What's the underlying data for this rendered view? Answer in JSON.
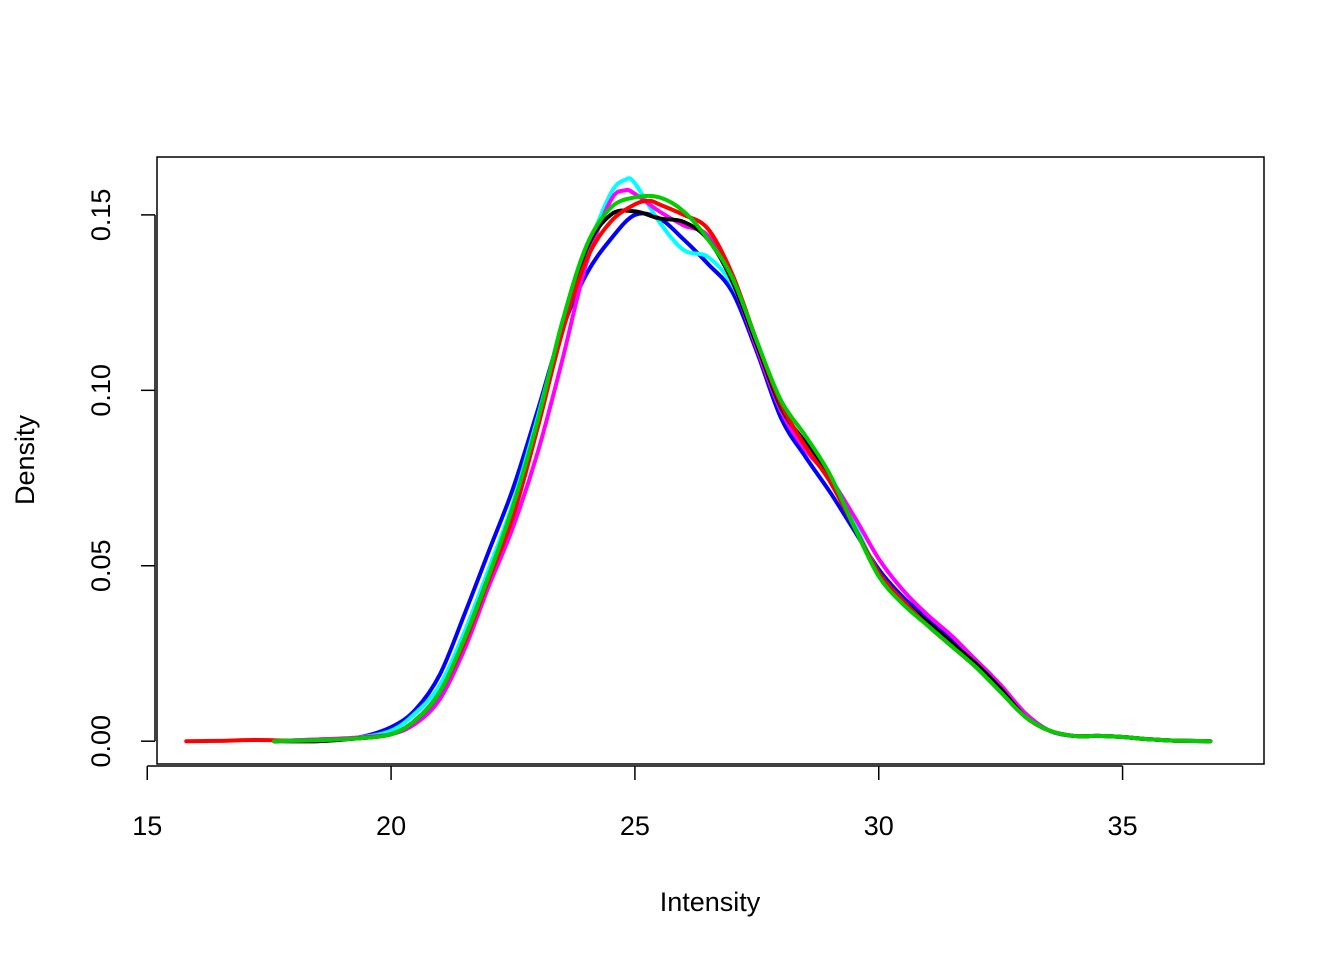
{
  "chart_data": {
    "type": "line",
    "title": "",
    "xlabel": "Intensity",
    "ylabel": "Density",
    "xlim": [
      15.2,
      37.9
    ],
    "ylim": [
      -0.0065,
      0.1665
    ],
    "x_ticks": [
      15,
      20,
      25,
      30,
      35
    ],
    "x_tick_labels": [
      "15",
      "20",
      "25",
      "30",
      "35"
    ],
    "y_ticks": [
      0,
      0.05,
      0.1,
      0.15
    ],
    "y_tick_labels": [
      "0.00",
      "0.05",
      "0.10",
      "0.15"
    ],
    "grid": false,
    "legend": "none",
    "series": [
      {
        "color": "#0000ff",
        "x": [
          17.6,
          18.5,
          19.3,
          20.0,
          20.5,
          21.0,
          21.5,
          22.0,
          22.5,
          23.0,
          23.5,
          24.0,
          24.5,
          25.0,
          25.5,
          26.0,
          26.5,
          27.0,
          27.5,
          28.0,
          28.5,
          29.0,
          29.5,
          30.0,
          30.5,
          31.0,
          31.5,
          32.0,
          32.5,
          33.0,
          33.5,
          34.0,
          34.5,
          35.0,
          35.5,
          36.0,
          36.8
        ],
        "y": [
          0.0,
          0.0005,
          0.001,
          0.004,
          0.009,
          0.019,
          0.036,
          0.054,
          0.072,
          0.094,
          0.117,
          0.133,
          0.143,
          0.15,
          0.149,
          0.143,
          0.136,
          0.128,
          0.111,
          0.092,
          0.081,
          0.071,
          0.06,
          0.049,
          0.041,
          0.035,
          0.029,
          0.023,
          0.016,
          0.008,
          0.003,
          0.0015,
          0.0015,
          0.0012,
          0.0006,
          0.0002,
          0.0
        ]
      },
      {
        "color": "#00ffff",
        "x": [
          17.6,
          18.5,
          19.3,
          20.0,
          20.5,
          21.0,
          21.5,
          22.0,
          22.5,
          23.0,
          23.5,
          24.0,
          24.5,
          24.8,
          25.0,
          25.5,
          26.0,
          26.5,
          27.0,
          27.5,
          28.0,
          28.5,
          29.0,
          29.5,
          30.0,
          30.5,
          31.0,
          31.5,
          32.0,
          32.5,
          33.0,
          33.5,
          34.0,
          34.5,
          35.0,
          35.5,
          36.0,
          36.8
        ],
        "y": [
          0.0,
          0.0005,
          0.001,
          0.003,
          0.008,
          0.016,
          0.031,
          0.049,
          0.068,
          0.092,
          0.118,
          0.139,
          0.156,
          0.16,
          0.159,
          0.148,
          0.14,
          0.138,
          0.13,
          0.114,
          0.095,
          0.085,
          0.075,
          0.062,
          0.048,
          0.04,
          0.034,
          0.028,
          0.022,
          0.015,
          0.007,
          0.003,
          0.0015,
          0.0015,
          0.0012,
          0.0006,
          0.0002,
          0.0
        ]
      },
      {
        "color": "#ff00ff",
        "x": [
          17.6,
          18.5,
          19.3,
          20.0,
          20.5,
          21.0,
          21.5,
          22.0,
          22.5,
          23.0,
          23.5,
          24.0,
          24.5,
          24.8,
          25.0,
          25.5,
          26.0,
          26.5,
          27.0,
          27.5,
          28.0,
          28.5,
          29.0,
          29.5,
          30.0,
          30.5,
          31.0,
          31.5,
          32.0,
          32.5,
          33.0,
          33.5,
          34.0,
          34.5,
          35.0,
          35.5,
          36.0,
          36.8
        ],
        "y": [
          0.0,
          0.0005,
          0.001,
          0.002,
          0.005,
          0.012,
          0.026,
          0.044,
          0.061,
          0.082,
          0.108,
          0.136,
          0.154,
          0.157,
          0.156,
          0.151,
          0.147,
          0.144,
          0.131,
          0.112,
          0.094,
          0.083,
          0.075,
          0.064,
          0.052,
          0.043,
          0.036,
          0.03,
          0.023,
          0.016,
          0.008,
          0.003,
          0.0015,
          0.0015,
          0.0012,
          0.0006,
          0.0002,
          0.0
        ]
      },
      {
        "color": "#000000",
        "x": [
          17.6,
          18.5,
          19.3,
          20.0,
          20.5,
          21.0,
          21.5,
          22.0,
          22.5,
          23.0,
          23.5,
          24.0,
          24.5,
          25.0,
          25.5,
          26.0,
          26.5,
          27.0,
          27.5,
          28.0,
          28.5,
          29.0,
          29.5,
          30.0,
          30.5,
          31.0,
          31.5,
          32.0,
          32.5,
          33.0,
          33.5,
          34.0,
          34.5,
          35.0,
          35.5,
          36.0,
          36.8
        ],
        "y": [
          0.0,
          0.0,
          0.0008,
          0.002,
          0.006,
          0.014,
          0.029,
          0.047,
          0.066,
          0.09,
          0.117,
          0.14,
          0.15,
          0.151,
          0.149,
          0.148,
          0.143,
          0.131,
          0.113,
          0.095,
          0.085,
          0.075,
          0.061,
          0.048,
          0.04,
          0.034,
          0.028,
          0.022,
          0.015,
          0.007,
          0.003,
          0.0015,
          0.0015,
          0.0012,
          0.0006,
          0.0002,
          0.0
        ]
      },
      {
        "color": "#ff0000",
        "x": [
          15.8,
          16.5,
          17.0,
          17.5,
          18.0,
          18.5,
          19.3,
          20.0,
          20.5,
          21.0,
          21.5,
          22.0,
          22.5,
          23.0,
          23.5,
          24.0,
          24.5,
          25.0,
          25.3,
          25.5,
          26.0,
          26.5,
          27.0,
          27.5,
          28.0,
          28.5,
          29.0,
          29.5,
          30.0,
          30.5,
          31.0,
          31.5,
          32.0,
          32.5,
          33.0,
          33.5,
          34.0,
          34.5,
          35.0,
          35.5,
          36.0,
          36.8
        ],
        "y": [
          0.0,
          0.0001,
          0.0003,
          0.0003,
          0.0001,
          0.0003,
          0.0008,
          0.002,
          0.006,
          0.014,
          0.028,
          0.046,
          0.064,
          0.089,
          0.116,
          0.137,
          0.148,
          0.153,
          0.154,
          0.153,
          0.15,
          0.146,
          0.133,
          0.114,
          0.096,
          0.084,
          0.074,
          0.061,
          0.048,
          0.04,
          0.033,
          0.027,
          0.021,
          0.014,
          0.007,
          0.003,
          0.0015,
          0.0015,
          0.0012,
          0.0006,
          0.0002,
          0.0
        ]
      },
      {
        "color": "#00cd00",
        "x": [
          17.6,
          18.5,
          19.3,
          20.0,
          20.5,
          21.0,
          21.5,
          22.0,
          22.5,
          23.0,
          23.5,
          24.0,
          24.5,
          25.0,
          25.5,
          26.0,
          26.5,
          27.0,
          27.5,
          28.0,
          28.5,
          29.0,
          29.5,
          30.0,
          30.5,
          31.0,
          31.5,
          32.0,
          32.5,
          33.0,
          33.5,
          34.0,
          34.5,
          35.0,
          35.5,
          36.0,
          36.8
        ],
        "y": [
          0.0,
          0.0003,
          0.0008,
          0.002,
          0.006,
          0.014,
          0.029,
          0.047,
          0.067,
          0.091,
          0.119,
          0.141,
          0.152,
          0.155,
          0.155,
          0.151,
          0.143,
          0.132,
          0.114,
          0.097,
          0.087,
          0.076,
          0.061,
          0.047,
          0.039,
          0.033,
          0.027,
          0.021,
          0.014,
          0.007,
          0.003,
          0.0015,
          0.0015,
          0.0012,
          0.0006,
          0.0002,
          0.0
        ]
      }
    ]
  }
}
